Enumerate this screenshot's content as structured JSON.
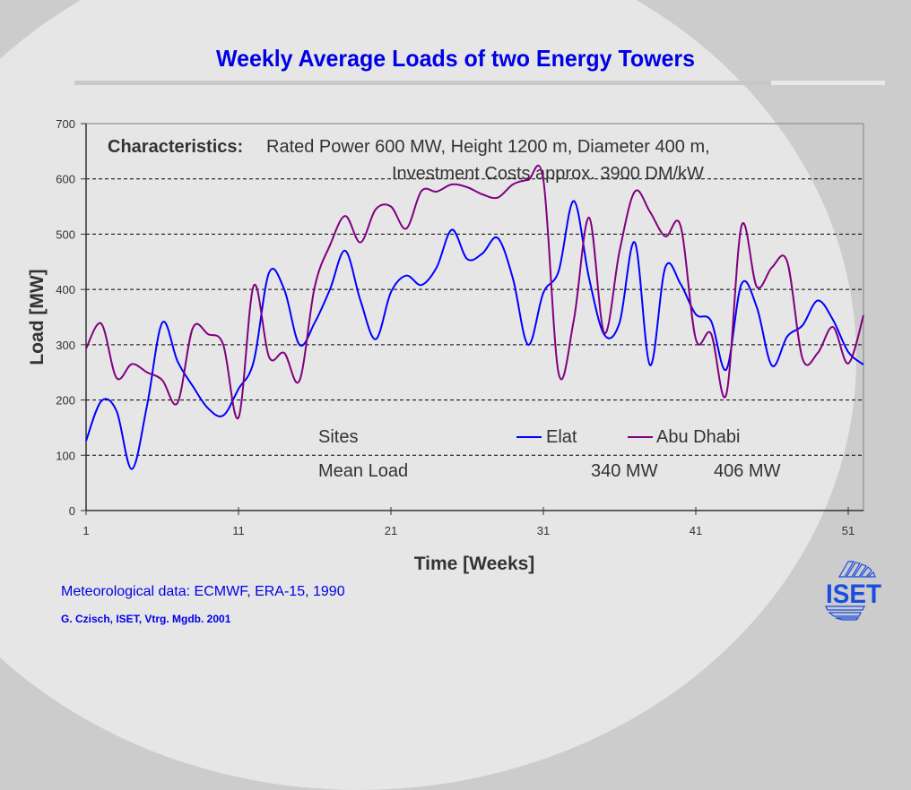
{
  "slide": {
    "title": "Weekly Average Loads of two Energy Towers",
    "footer_data_source": "Meteorological data: ECMWF, ERA-15, 1990",
    "footer_credit": "G. Czisch, ISET, Vtrg. Mgdb. 2001",
    "logo_text": "ISET",
    "colors": {
      "title": "#0000e6",
      "elat": "#0000ff",
      "abu_dhabi": "#800080",
      "background_light": "#e6e6e6",
      "background_dark": "#cccccc"
    }
  },
  "chart_data": {
    "type": "line",
    "title": "Weekly Average Loads of two Energy Towers",
    "xlabel": "Time [Weeks]",
    "ylabel": "Load [MW]",
    "xlim": [
      1,
      52
    ],
    "ylim": [
      0,
      700
    ],
    "x_ticks": [
      1,
      11,
      21,
      31,
      41,
      51
    ],
    "y_ticks": [
      0,
      100,
      200,
      300,
      400,
      500,
      600,
      700
    ],
    "grid": "horizontal dashed",
    "legend": "bottom-center (inside plot)",
    "x": [
      1,
      2,
      3,
      4,
      5,
      6,
      7,
      8,
      9,
      10,
      11,
      12,
      13,
      14,
      15,
      16,
      17,
      18,
      19,
      20,
      21,
      22,
      23,
      24,
      25,
      26,
      27,
      28,
      29,
      30,
      31,
      32,
      33,
      34,
      35,
      36,
      37,
      38,
      39,
      40,
      41,
      42,
      43,
      44,
      45,
      46,
      47,
      48,
      49,
      50,
      51,
      52
    ],
    "series": [
      {
        "name": "Elat",
        "color": "#0000ff",
        "mean_load": "340 MW",
        "values": [
          126,
          198,
          180,
          75,
          190,
          340,
          270,
          225,
          185,
          172,
          220,
          270,
          430,
          400,
          300,
          340,
          400,
          470,
          380,
          310,
          395,
          425,
          408,
          440,
          508,
          455,
          465,
          493,
          420,
          300,
          394,
          433,
          560,
          420,
          318,
          340,
          485,
          263,
          440,
          410,
          355,
          343,
          255,
          410,
          368,
          262,
          315,
          335,
          380,
          345,
          287,
          264
        ]
      },
      {
        "name": "Abu Dhabi",
        "color": "#800080",
        "mean_load": "406 MW",
        "values": [
          293,
          338,
          240,
          265,
          250,
          236,
          195,
          330,
          319,
          300,
          168,
          407,
          278,
          285,
          235,
          405,
          480,
          533,
          485,
          545,
          550,
          510,
          578,
          577,
          590,
          585,
          572,
          566,
          590,
          598,
          598,
          248,
          345,
          530,
          321,
          470,
          577,
          540,
          496,
          515,
          310,
          320,
          210,
          515,
          405,
          440,
          450,
          275,
          285,
          332,
          266,
          353
        ]
      }
    ],
    "annotations": {
      "characteristics_label": "Characteristics:",
      "characteristics_line1": "Rated Power 600 MW, Height 1200 m, Diameter 400 m,",
      "characteristics_line2": "Investment Costs approx. 3900 DM/kW",
      "sites_label": "Sites",
      "mean_load_label": "Mean Load"
    }
  }
}
